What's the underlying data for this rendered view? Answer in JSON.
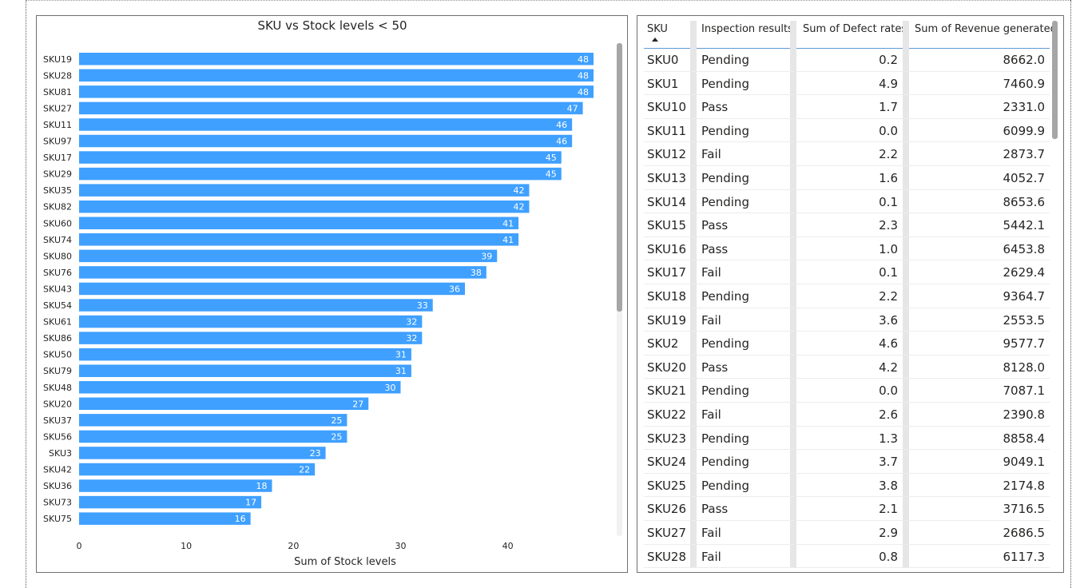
{
  "chart_data": {
    "type": "bar",
    "orientation": "horizontal",
    "title": "SKU vs Stock levels < 50",
    "xlabel": "Sum of Stock levels",
    "ylabel": "",
    "xlim": [
      0,
      48
    ],
    "xticks": [
      0,
      10,
      20,
      30,
      40
    ],
    "grid": false,
    "bar_color": "#3fa0ff",
    "categories": [
      "SKU19",
      "SKU28",
      "SKU81",
      "SKU27",
      "SKU11",
      "SKU97",
      "SKU17",
      "SKU29",
      "SKU35",
      "SKU82",
      "SKU60",
      "SKU74",
      "SKU80",
      "SKU76",
      "SKU43",
      "SKU54",
      "SKU61",
      "SKU86",
      "SKU50",
      "SKU79",
      "SKU48",
      "SKU20",
      "SKU37",
      "SKU56",
      "SKU3",
      "SKU42",
      "SKU36",
      "SKU73",
      "SKU75"
    ],
    "values": [
      48,
      48,
      48,
      47,
      46,
      46,
      45,
      45,
      42,
      42,
      41,
      41,
      39,
      38,
      36,
      33,
      32,
      32,
      31,
      31,
      30,
      27,
      25,
      25,
      23,
      22,
      18,
      17,
      16
    ]
  },
  "table": {
    "headers": [
      "SKU",
      "Inspection results",
      "Sum of Defect rates",
      "Sum of Revenue generated"
    ],
    "sort_column": "SKU",
    "rows": [
      [
        "SKU0",
        "Pending",
        "0.2",
        "8662.0"
      ],
      [
        "SKU1",
        "Pending",
        "4.9",
        "7460.9"
      ],
      [
        "SKU10",
        "Pass",
        "1.7",
        "2331.0"
      ],
      [
        "SKU11",
        "Pending",
        "0.0",
        "6099.9"
      ],
      [
        "SKU12",
        "Fail",
        "2.2",
        "2873.7"
      ],
      [
        "SKU13",
        "Pending",
        "1.6",
        "4052.7"
      ],
      [
        "SKU14",
        "Pending",
        "0.1",
        "8653.6"
      ],
      [
        "SKU15",
        "Pass",
        "2.3",
        "5442.1"
      ],
      [
        "SKU16",
        "Pass",
        "1.0",
        "6453.8"
      ],
      [
        "SKU17",
        "Fail",
        "0.1",
        "2629.4"
      ],
      [
        "SKU18",
        "Pending",
        "2.2",
        "9364.7"
      ],
      [
        "SKU19",
        "Fail",
        "3.6",
        "2553.5"
      ],
      [
        "SKU2",
        "Pending",
        "4.6",
        "9577.7"
      ],
      [
        "SKU20",
        "Pass",
        "4.2",
        "8128.0"
      ],
      [
        "SKU21",
        "Pending",
        "0.0",
        "7087.1"
      ],
      [
        "SKU22",
        "Fail",
        "2.6",
        "2390.8"
      ],
      [
        "SKU23",
        "Pending",
        "1.3",
        "8858.4"
      ],
      [
        "SKU24",
        "Pending",
        "3.7",
        "9049.1"
      ],
      [
        "SKU25",
        "Pending",
        "3.8",
        "2174.8"
      ],
      [
        "SKU26",
        "Pass",
        "2.1",
        "3716.5"
      ],
      [
        "SKU27",
        "Fail",
        "2.9",
        "2686.5"
      ],
      [
        "SKU28",
        "Fail",
        "0.8",
        "6117.3"
      ]
    ]
  }
}
